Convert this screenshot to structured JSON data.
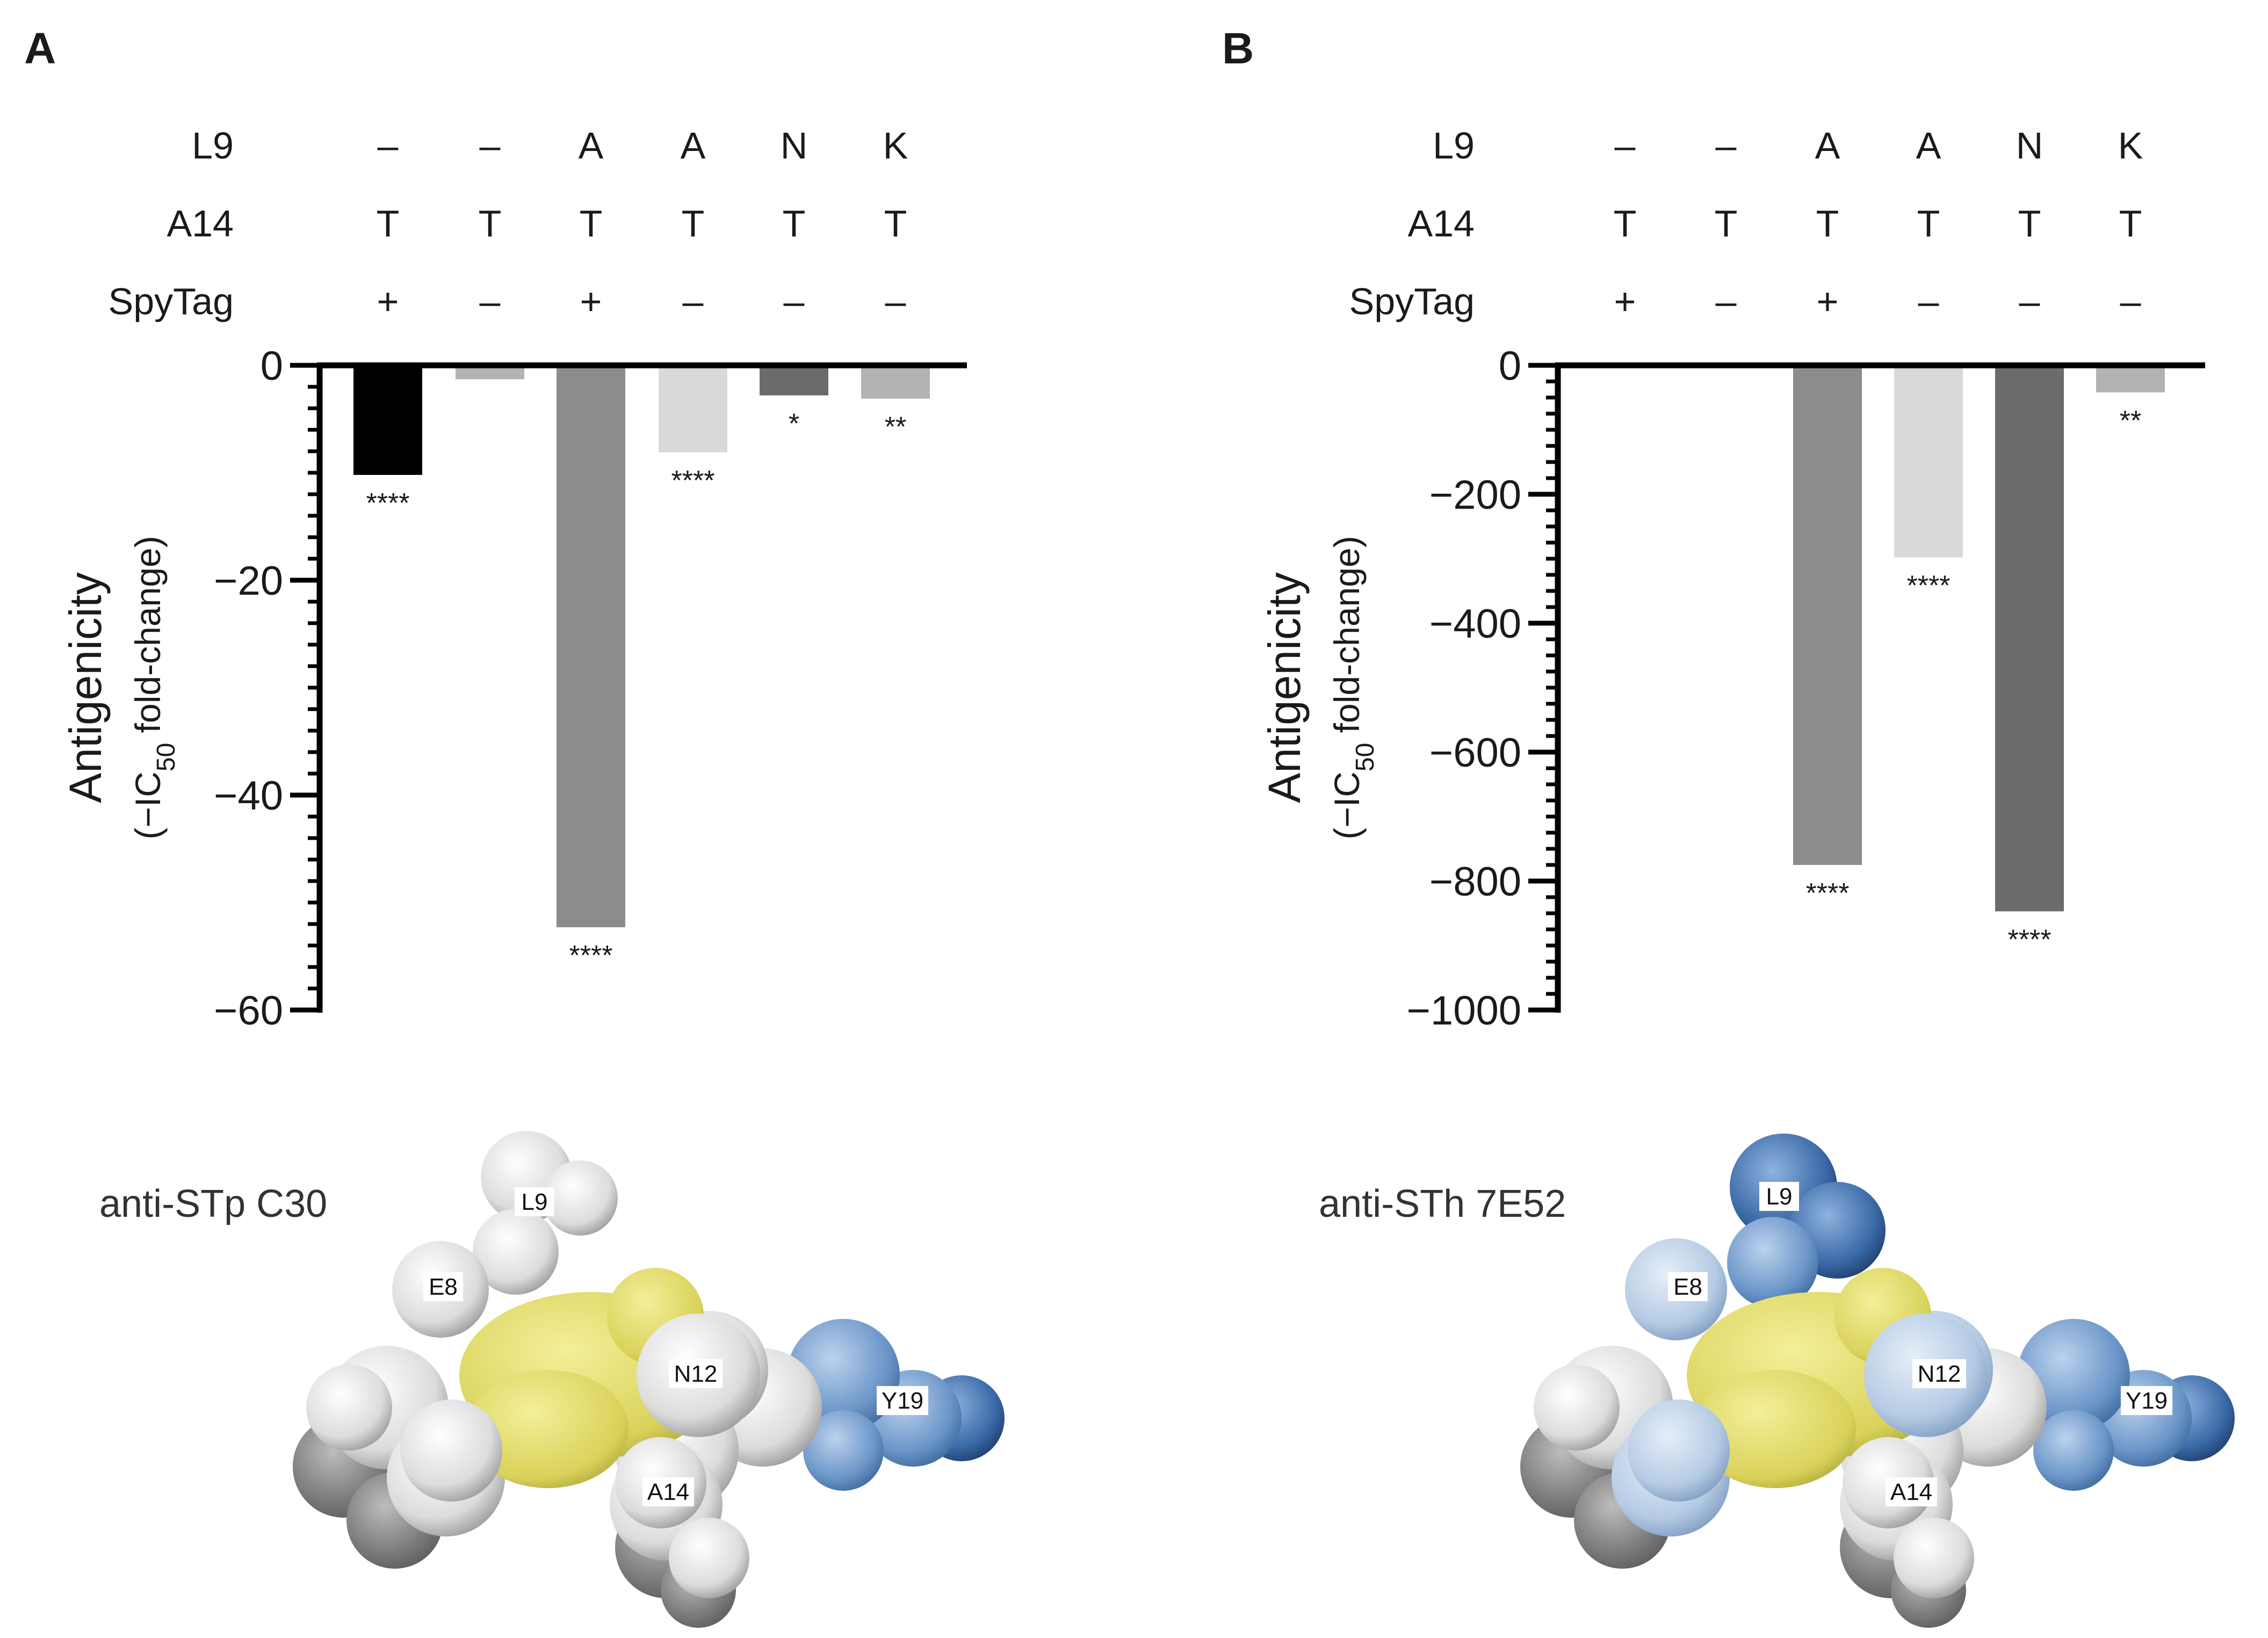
{
  "panels": [
    {
      "letter": "A",
      "rows": [
        {
          "label": "L9",
          "values": [
            "–",
            "–",
            "A",
            "A",
            "N",
            "K"
          ]
        },
        {
          "label": "A14",
          "values": [
            "T",
            "T",
            "T",
            "T",
            "T",
            "T"
          ]
        },
        {
          "label": "SpyTag",
          "values": [
            "+",
            "–",
            "+",
            "–",
            "–",
            "–"
          ]
        }
      ],
      "ylabel_main": "Antigenicity",
      "ylabel_sub_prefix": "(−IC",
      "ylabel_sub_subscript": "50",
      "ylabel_sub_suffix": " fold-change)",
      "mol_title": "anti-STp C30",
      "residues": [
        "L9",
        "E8",
        "N12",
        "Y19",
        "A14"
      ]
    },
    {
      "letter": "B",
      "rows": [
        {
          "label": "L9",
          "values": [
            "–",
            "–",
            "A",
            "A",
            "N",
            "K"
          ]
        },
        {
          "label": "A14",
          "values": [
            "T",
            "T",
            "T",
            "T",
            "T",
            "T"
          ]
        },
        {
          "label": "SpyTag",
          "values": [
            "+",
            "–",
            "+",
            "–",
            "–",
            "–"
          ]
        }
      ],
      "ylabel_main": "Antigenicity",
      "ylabel_sub_prefix": "(−IC",
      "ylabel_sub_subscript": "50",
      "ylabel_sub_suffix": " fold-change)",
      "mol_title": "anti-STh 7E52",
      "residues": [
        "L9",
        "E8",
        "N12",
        "Y19",
        "A14"
      ]
    }
  ],
  "chart_data": [
    {
      "type": "bar",
      "panel": "A",
      "categories": [
        "1",
        "2",
        "3",
        "4",
        "5",
        "6"
      ],
      "values": [
        -10.2,
        -1.3,
        -52.3,
        -8.1,
        -2.8,
        -3.1
      ],
      "bar_colors": [
        "#000000",
        "#b3b3b3",
        "#8c8c8c",
        "#d9d9d9",
        "#6b6b6b",
        "#b3b3b3"
      ],
      "significance": [
        "****",
        "",
        "****",
        "****",
        "*",
        "**"
      ],
      "ylim": [
        -60,
        0
      ],
      "yticks": [
        0,
        -20,
        -40,
        -60
      ],
      "ytick_labels": [
        "0",
        "−20",
        "−40",
        "−60"
      ],
      "minor_step": 2
    },
    {
      "type": "bar",
      "panel": "B",
      "categories": [
        "1",
        "2",
        "3",
        "4",
        "5",
        "6"
      ],
      "values": [
        0,
        0,
        -775,
        -298,
        -847,
        -42
      ],
      "bar_colors": [
        "#000000",
        "#b3b3b3",
        "#8c8c8c",
        "#d9d9d9",
        "#6b6b6b",
        "#b3b3b3"
      ],
      "significance": [
        "",
        "",
        "****",
        "****",
        "****",
        "**"
      ],
      "ylim": [
        -1000,
        0
      ],
      "yticks": [
        0,
        -200,
        -400,
        -600,
        -800,
        -1000
      ],
      "ytick_labels": [
        "0",
        "−200",
        "−400",
        "−600",
        "−800",
        "−1000"
      ],
      "minor_step": 25
    }
  ],
  "colors": {
    "yellow": "#e3dc6a",
    "white_gray": "#e9e9e9",
    "dark_gray": "#8a8a8a",
    "light_blue": "#a9c3e0",
    "mid_blue": "#6b96c8",
    "dark_blue": "#3a6aa8"
  }
}
